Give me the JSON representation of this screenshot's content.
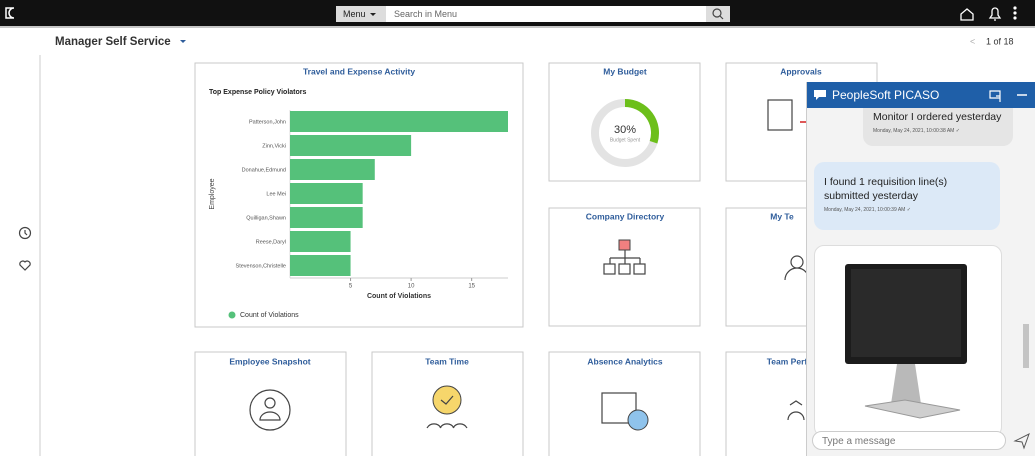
{
  "topbar": {
    "menu_button": "Menu",
    "search_placeholder": "Search in Menu"
  },
  "nav": {
    "title": "Manager Self Service",
    "pager": "1 of 18"
  },
  "chart_data": {
    "type": "bar",
    "orientation": "horizontal",
    "title": "Travel and Expense Activity",
    "subtitle": "Top Expense Policy Violators",
    "y_label": "Employee",
    "x_label": "Count of Violations",
    "categories": [
      "Patterson,John",
      "Zinn,Vicki",
      "Donahue,Edmund",
      "Lee Mei",
      "Quilligan,Shawn",
      "Reese,Daryl",
      "Stevenson,Christelle"
    ],
    "series": [
      {
        "name": "Count of Violations",
        "color": "#55c17a",
        "values": [
          18,
          10,
          7,
          6,
          6,
          5,
          5
        ]
      }
    ],
    "xlim": [
      0,
      18
    ],
    "xticks": [
      5,
      10,
      15
    ],
    "legend": "bottom-left"
  },
  "budget": {
    "title": "My Budget",
    "value": 30,
    "value_label": "30%",
    "caption": "Budget Spent",
    "color": "#6cbf1a"
  },
  "tiles": [
    "Approvals",
    "Company Directory",
    "My Te",
    "Employee Snapshot",
    "Team Time",
    "Absence Analytics",
    "Team Perf"
  ],
  "chat": {
    "title": "PeopleSoft PICASO",
    "messages": [
      {
        "from": "user",
        "text": "Monitor I ordered yesterday",
        "time": "Monday, May 24, 2021, 10:00:38 AM ✓"
      },
      {
        "from": "bot",
        "text": "I found 1 requisition line(s) submitted yesterday",
        "time": "Monday, May 24, 2021, 10:00:39 AM ✓"
      }
    ],
    "input_placeholder": "Type a message"
  }
}
